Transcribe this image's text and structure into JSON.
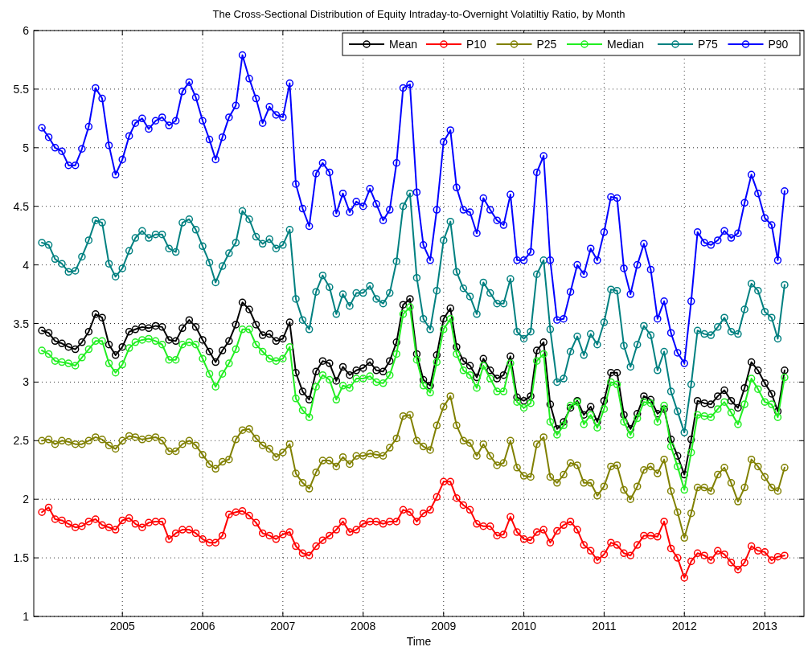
{
  "chart_data": {
    "type": "line",
    "title": "The Cross-Sectional Distribution of Equity Intraday-to-Overnight Volatiltiy Ratio, by Month",
    "xlabel": "Time",
    "x": [
      "2004-01",
      "2004-02",
      "2004-03",
      "2004-04",
      "2004-05",
      "2004-06",
      "2004-07",
      "2004-08",
      "2004-09",
      "2004-10",
      "2004-11",
      "2004-12",
      "2005-01",
      "2005-02",
      "2005-03",
      "2005-04",
      "2005-05",
      "2005-06",
      "2005-07",
      "2005-08",
      "2005-09",
      "2005-10",
      "2005-11",
      "2005-12",
      "2006-01",
      "2006-02",
      "2006-03",
      "2006-04",
      "2006-05",
      "2006-06",
      "2006-07",
      "2006-08",
      "2006-09",
      "2006-10",
      "2006-11",
      "2006-12",
      "2007-01",
      "2007-02",
      "2007-03",
      "2007-04",
      "2007-05",
      "2007-06",
      "2007-07",
      "2007-08",
      "2007-09",
      "2007-10",
      "2007-11",
      "2007-12",
      "2008-01",
      "2008-02",
      "2008-03",
      "2008-04",
      "2008-05",
      "2008-06",
      "2008-07",
      "2008-08",
      "2008-09",
      "2008-10",
      "2008-11",
      "2008-12",
      "2009-01",
      "2009-02",
      "2009-03",
      "2009-04",
      "2009-05",
      "2009-06",
      "2009-07",
      "2009-08",
      "2009-09",
      "2009-10",
      "2009-11",
      "2009-12",
      "2010-01",
      "2010-02",
      "2010-03",
      "2010-04",
      "2010-05",
      "2010-06",
      "2010-07",
      "2010-08",
      "2010-09",
      "2010-10",
      "2010-11",
      "2010-12",
      "2011-01",
      "2011-02",
      "2011-03",
      "2011-04",
      "2011-05",
      "2011-06",
      "2011-07",
      "2011-08",
      "2011-09",
      "2011-10",
      "2011-11",
      "2011-12",
      "2012-01",
      "2012-02",
      "2012-03",
      "2012-04",
      "2012-05",
      "2012-06",
      "2012-07",
      "2012-08",
      "2012-09",
      "2012-10",
      "2012-11",
      "2012-12",
      "2013-01",
      "2013-02",
      "2013-03",
      "2013-04"
    ],
    "series": [
      {
        "name": "Mean",
        "color": "#000000",
        "values": [
          3.44,
          3.42,
          3.35,
          3.33,
          3.3,
          3.28,
          3.34,
          3.43,
          3.58,
          3.55,
          3.32,
          3.23,
          3.3,
          3.43,
          3.45,
          3.47,
          3.46,
          3.48,
          3.47,
          3.36,
          3.35,
          3.46,
          3.53,
          3.47,
          3.36,
          3.26,
          3.17,
          3.27,
          3.35,
          3.49,
          3.68,
          3.62,
          3.49,
          3.4,
          3.41,
          3.35,
          3.37,
          3.51,
          3.08,
          2.92,
          2.85,
          3.09,
          3.18,
          3.16,
          3.01,
          3.13,
          3.06,
          3.1,
          3.12,
          3.17,
          3.1,
          3.09,
          3.18,
          3.34,
          3.66,
          3.71,
          3.24,
          3.02,
          2.97,
          3.23,
          3.54,
          3.63,
          3.3,
          3.18,
          3.14,
          3.04,
          3.2,
          3.1,
          3.03,
          3.06,
          3.22,
          2.87,
          2.84,
          2.88,
          3.27,
          3.34,
          2.81,
          2.6,
          2.66,
          2.78,
          2.84,
          2.72,
          2.79,
          2.66,
          2.84,
          3.08,
          3.08,
          2.72,
          2.6,
          2.73,
          2.88,
          2.85,
          2.73,
          2.77,
          2.51,
          2.37,
          2.21,
          2.51,
          2.84,
          2.82,
          2.81,
          2.88,
          2.93,
          2.84,
          2.78,
          2.95,
          3.17,
          3.1,
          2.99,
          2.9,
          2.75,
          3.1
        ]
      },
      {
        "name": "P10",
        "color": "#ff0000",
        "values": [
          1.89,
          1.93,
          1.83,
          1.82,
          1.79,
          1.76,
          1.77,
          1.81,
          1.83,
          1.78,
          1.76,
          1.74,
          1.82,
          1.84,
          1.79,
          1.76,
          1.8,
          1.81,
          1.81,
          1.66,
          1.71,
          1.74,
          1.74,
          1.71,
          1.66,
          1.63,
          1.63,
          1.69,
          1.87,
          1.89,
          1.9,
          1.86,
          1.8,
          1.71,
          1.69,
          1.66,
          1.7,
          1.72,
          1.6,
          1.54,
          1.52,
          1.6,
          1.65,
          1.69,
          1.74,
          1.81,
          1.72,
          1.74,
          1.79,
          1.81,
          1.81,
          1.79,
          1.81,
          1.81,
          1.91,
          1.89,
          1.81,
          1.88,
          1.91,
          2.02,
          2.15,
          2.15,
          2.01,
          1.95,
          1.91,
          1.79,
          1.77,
          1.77,
          1.69,
          1.7,
          1.85,
          1.72,
          1.66,
          1.65,
          1.72,
          1.74,
          1.63,
          1.73,
          1.78,
          1.81,
          1.74,
          1.61,
          1.56,
          1.48,
          1.53,
          1.63,
          1.61,
          1.54,
          1.52,
          1.61,
          1.69,
          1.69,
          1.68,
          1.81,
          1.58,
          1.5,
          1.33,
          1.47,
          1.54,
          1.52,
          1.48,
          1.56,
          1.53,
          1.46,
          1.4,
          1.46,
          1.6,
          1.56,
          1.55,
          1.48,
          1.51,
          1.52
        ]
      },
      {
        "name": "P25",
        "color": "#808000",
        "values": [
          2.5,
          2.51,
          2.47,
          2.5,
          2.49,
          2.47,
          2.47,
          2.5,
          2.53,
          2.51,
          2.46,
          2.43,
          2.5,
          2.54,
          2.53,
          2.51,
          2.52,
          2.53,
          2.5,
          2.41,
          2.41,
          2.47,
          2.5,
          2.46,
          2.38,
          2.3,
          2.26,
          2.32,
          2.34,
          2.51,
          2.59,
          2.6,
          2.52,
          2.46,
          2.43,
          2.36,
          2.4,
          2.47,
          2.22,
          2.14,
          2.09,
          2.23,
          2.33,
          2.33,
          2.28,
          2.36,
          2.3,
          2.37,
          2.37,
          2.39,
          2.38,
          2.37,
          2.44,
          2.52,
          2.71,
          2.72,
          2.5,
          2.45,
          2.42,
          2.63,
          2.79,
          2.88,
          2.63,
          2.5,
          2.48,
          2.37,
          2.47,
          2.37,
          2.29,
          2.31,
          2.5,
          2.27,
          2.2,
          2.19,
          2.47,
          2.53,
          2.19,
          2.14,
          2.21,
          2.31,
          2.29,
          2.14,
          2.14,
          2.03,
          2.11,
          2.28,
          2.29,
          2.08,
          2.0,
          2.11,
          2.25,
          2.28,
          2.22,
          2.34,
          2.07,
          1.89,
          1.67,
          1.88,
          2.1,
          2.1,
          2.07,
          2.21,
          2.27,
          2.14,
          1.98,
          2.1,
          2.34,
          2.28,
          2.19,
          2.1,
          2.07,
          2.27
        ]
      },
      {
        "name": "Median",
        "color": "#22ee22",
        "values": [
          3.27,
          3.24,
          3.18,
          3.17,
          3.16,
          3.14,
          3.21,
          3.28,
          3.35,
          3.35,
          3.16,
          3.08,
          3.15,
          3.29,
          3.34,
          3.36,
          3.37,
          3.35,
          3.32,
          3.19,
          3.19,
          3.32,
          3.34,
          3.32,
          3.2,
          3.07,
          2.96,
          3.07,
          3.16,
          3.28,
          3.45,
          3.45,
          3.32,
          3.26,
          3.2,
          3.18,
          3.2,
          3.3,
          2.86,
          2.76,
          2.7,
          2.96,
          3.06,
          3.02,
          2.85,
          2.97,
          2.95,
          3.03,
          3.03,
          3.05,
          3.0,
          2.99,
          3.06,
          3.24,
          3.58,
          3.64,
          3.19,
          2.97,
          2.91,
          3.17,
          3.45,
          3.54,
          3.24,
          3.1,
          3.06,
          2.95,
          3.14,
          3.03,
          2.92,
          2.92,
          3.16,
          2.83,
          2.78,
          2.82,
          3.18,
          3.24,
          2.66,
          2.55,
          2.63,
          2.8,
          2.83,
          2.64,
          2.72,
          2.61,
          2.77,
          3.0,
          2.98,
          2.66,
          2.55,
          2.69,
          2.83,
          2.82,
          2.66,
          2.8,
          2.45,
          2.28,
          2.08,
          2.4,
          2.72,
          2.71,
          2.7,
          2.77,
          2.83,
          2.74,
          2.64,
          2.81,
          3.03,
          2.94,
          2.83,
          2.81,
          2.7,
          3.04
        ]
      },
      {
        "name": "P75",
        "color": "#008080",
        "values": [
          4.19,
          4.17,
          4.05,
          4.01,
          3.94,
          3.95,
          4.07,
          4.21,
          4.38,
          4.36,
          4.01,
          3.9,
          3.97,
          4.12,
          4.23,
          4.29,
          4.23,
          4.26,
          4.26,
          4.14,
          4.11,
          4.36,
          4.39,
          4.3,
          4.16,
          4.02,
          3.85,
          3.99,
          4.1,
          4.19,
          4.46,
          4.39,
          4.24,
          4.18,
          4.22,
          4.14,
          4.17,
          4.3,
          3.71,
          3.53,
          3.45,
          3.77,
          3.91,
          3.81,
          3.58,
          3.75,
          3.65,
          3.76,
          3.76,
          3.82,
          3.71,
          3.67,
          3.76,
          4.03,
          4.5,
          4.61,
          3.89,
          3.54,
          3.45,
          3.78,
          4.21,
          4.37,
          3.94,
          3.8,
          3.73,
          3.58,
          3.85,
          3.76,
          3.67,
          3.67,
          3.88,
          3.43,
          3.37,
          3.43,
          3.92,
          4.04,
          3.45,
          3.0,
          3.03,
          3.26,
          3.39,
          3.23,
          3.41,
          3.32,
          3.51,
          3.79,
          3.78,
          3.31,
          3.13,
          3.32,
          3.48,
          3.4,
          3.1,
          3.26,
          2.92,
          2.75,
          2.57,
          2.98,
          3.44,
          3.41,
          3.4,
          3.47,
          3.55,
          3.43,
          3.41,
          3.62,
          3.84,
          3.78,
          3.6,
          3.55,
          3.37,
          3.83
        ]
      },
      {
        "name": "P90",
        "color": "#0000ff",
        "values": [
          5.17,
          5.09,
          5.0,
          4.97,
          4.85,
          4.85,
          4.99,
          5.18,
          5.51,
          5.42,
          5.02,
          4.77,
          4.9,
          5.1,
          5.21,
          5.25,
          5.16,
          5.23,
          5.26,
          5.19,
          5.23,
          5.48,
          5.56,
          5.43,
          5.23,
          5.07,
          4.9,
          5.09,
          5.26,
          5.36,
          5.79,
          5.59,
          5.42,
          5.21,
          5.35,
          5.28,
          5.26,
          5.55,
          4.69,
          4.48,
          4.33,
          4.78,
          4.87,
          4.79,
          4.44,
          4.61,
          4.45,
          4.54,
          4.5,
          4.65,
          4.52,
          4.38,
          4.47,
          4.87,
          5.51,
          5.54,
          4.62,
          4.17,
          4.04,
          4.47,
          5.05,
          5.15,
          4.66,
          4.47,
          4.45,
          4.27,
          4.57,
          4.47,
          4.38,
          4.34,
          4.6,
          4.04,
          4.04,
          4.11,
          4.79,
          4.93,
          4.04,
          3.53,
          3.54,
          3.77,
          4.0,
          3.92,
          4.14,
          4.04,
          4.28,
          4.58,
          4.57,
          3.97,
          3.75,
          4.0,
          4.18,
          3.96,
          3.54,
          3.69,
          3.42,
          3.25,
          3.16,
          3.69,
          4.28,
          4.19,
          4.17,
          4.21,
          4.29,
          4.23,
          4.27,
          4.53,
          4.77,
          4.61,
          4.4,
          4.34,
          4.04,
          4.63
        ]
      }
    ],
    "xlim": [
      "2003-11-25",
      "2013-06-28"
    ],
    "xticks": [
      {
        "value": "2005",
        "label": "2005"
      },
      {
        "value": "2006",
        "label": "2006"
      },
      {
        "value": "2007",
        "label": "2007"
      },
      {
        "value": "2008",
        "label": "2008"
      },
      {
        "value": "2009",
        "label": "2009"
      },
      {
        "value": "2010",
        "label": "2010"
      },
      {
        "value": "2011",
        "label": "2011"
      },
      {
        "value": "2012",
        "label": "2012"
      },
      {
        "value": "2013",
        "label": "2013"
      }
    ],
    "ylim": [
      1,
      6
    ],
    "yticks": [
      1,
      1.5,
      2,
      2.5,
      3,
      3.5,
      4,
      4.5,
      5,
      5.5,
      6
    ],
    "grid": true,
    "legend": "top right",
    "marker": "circle",
    "line_style": "solid"
  }
}
